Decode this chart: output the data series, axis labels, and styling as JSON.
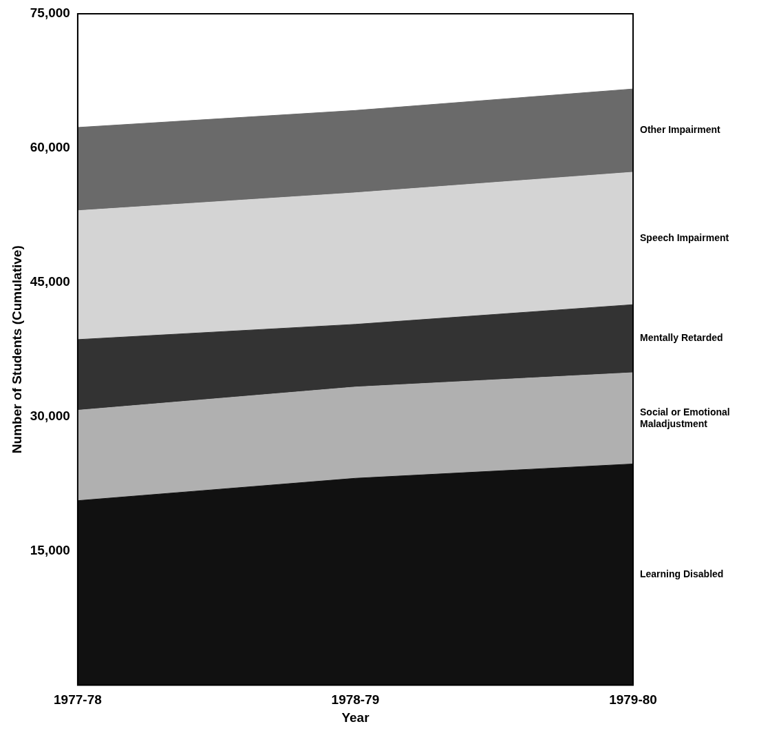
{
  "chart_data": {
    "type": "area",
    "stacked": true,
    "xlabel": "Year",
    "ylabel": "Number of Students (Cumulative)",
    "categories": [
      "1977-78",
      "1978-79",
      "1979-80"
    ],
    "ylim": [
      0,
      75000
    ],
    "yticks": [
      {
        "value": 0,
        "label": null
      },
      {
        "value": 15000,
        "label": "15,000"
      },
      {
        "value": 30000,
        "label": "30,000"
      },
      {
        "value": 45000,
        "label": "45,000"
      },
      {
        "value": 60000,
        "label": "60,000"
      },
      {
        "value": 75000,
        "label": "75,000"
      }
    ],
    "grid": false,
    "legend": false,
    "series": [
      {
        "name": "Learning Disabled",
        "color": "#111111",
        "values": [
          20600,
          23100,
          24700
        ]
      },
      {
        "name": "Social or Emotional Maladjustment",
        "color": "#b0b0b0",
        "values": [
          10100,
          10200,
          10200
        ]
      },
      {
        "name": "Mentally Retarded",
        "color": "#333333",
        "values": [
          7900,
          7000,
          7600
        ]
      },
      {
        "name": "Speech Impairment",
        "color": "#d4d4d4",
        "values": [
          14400,
          14700,
          14800
        ]
      },
      {
        "name": "Other Impairment",
        "color": "#6a6a6a",
        "values": [
          9300,
          9200,
          9300
        ]
      }
    ]
  }
}
